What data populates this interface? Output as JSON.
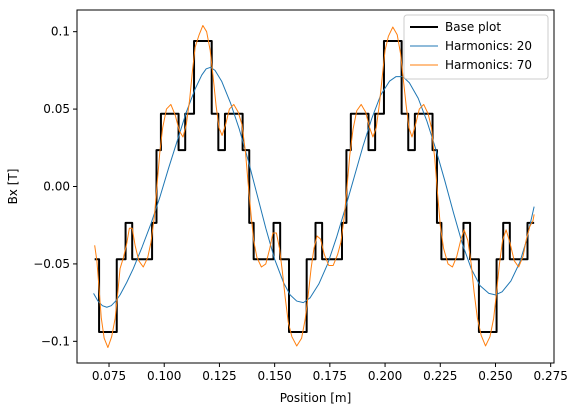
{
  "chart_data": {
    "type": "line",
    "title": "",
    "xlabel": "Position [m]",
    "ylabel": "Bx [T]",
    "xlim": [
      0.0605,
      0.2765
    ],
    "ylim": [
      -0.114,
      0.114
    ],
    "x_ticks": [
      0.075,
      0.1,
      0.125,
      0.15,
      0.175,
      0.2,
      0.225,
      0.25,
      0.275
    ],
    "x_tick_labels": [
      "0.075",
      "0.100",
      "0.125",
      "0.150",
      "0.175",
      "0.200",
      "0.225",
      "0.250",
      "0.275"
    ],
    "y_ticks": [
      -0.1,
      -0.05,
      0.0,
      0.05,
      0.1
    ],
    "y_tick_labels": [
      "−0.1",
      "−0.05",
      "0.00",
      "0.05",
      "0.1"
    ],
    "grid": false,
    "legend_position": "top-right",
    "series": [
      {
        "name": "Base plot",
        "color": "#000000",
        "style": "step",
        "points": [
          [
            0.0685,
            -0.047
          ],
          [
            0.0705,
            -0.047
          ],
          [
            0.0705,
            -0.094
          ],
          [
            0.0785,
            -0.094
          ],
          [
            0.0785,
            -0.047
          ],
          [
            0.0825,
            -0.047
          ],
          [
            0.0825,
            -0.0235
          ],
          [
            0.0855,
            -0.0235
          ],
          [
            0.0855,
            -0.047
          ],
          [
            0.0945,
            -0.047
          ],
          [
            0.0945,
            -0.0235
          ],
          [
            0.0965,
            -0.0235
          ],
          [
            0.0965,
            0.0235
          ],
          [
            0.0985,
            0.0235
          ],
          [
            0.0985,
            0.047
          ],
          [
            0.1065,
            0.047
          ],
          [
            0.1065,
            0.0235
          ],
          [
            0.1095,
            0.0235
          ],
          [
            0.1095,
            0.047
          ],
          [
            0.1135,
            0.047
          ],
          [
            0.1135,
            0.094
          ],
          [
            0.1215,
            0.094
          ],
          [
            0.1215,
            0.047
          ],
          [
            0.1245,
            0.047
          ],
          [
            0.1245,
            0.0235
          ],
          [
            0.1275,
            0.0235
          ],
          [
            0.1275,
            0.047
          ],
          [
            0.1355,
            0.047
          ],
          [
            0.1355,
            0.0235
          ],
          [
            0.1385,
            0.0235
          ],
          [
            0.1385,
            -0.0235
          ],
          [
            0.1405,
            -0.0235
          ],
          [
            0.1405,
            -0.047
          ],
          [
            0.1495,
            -0.047
          ],
          [
            0.1495,
            -0.0235
          ],
          [
            0.1525,
            -0.0235
          ],
          [
            0.1525,
            -0.047
          ],
          [
            0.1565,
            -0.047
          ],
          [
            0.1565,
            -0.094
          ],
          [
            0.1645,
            -0.094
          ],
          [
            0.1645,
            -0.047
          ],
          [
            0.1685,
            -0.047
          ],
          [
            0.1685,
            -0.0235
          ],
          [
            0.1715,
            -0.0235
          ],
          [
            0.1715,
            -0.047
          ],
          [
            0.1805,
            -0.047
          ],
          [
            0.1805,
            -0.0235
          ],
          [
            0.1825,
            -0.0235
          ],
          [
            0.1825,
            0.0235
          ],
          [
            0.1845,
            0.0235
          ],
          [
            0.1845,
            0.047
          ],
          [
            0.1925,
            0.047
          ],
          [
            0.1925,
            0.0235
          ],
          [
            0.1955,
            0.0235
          ],
          [
            0.1955,
            0.047
          ],
          [
            0.1995,
            0.047
          ],
          [
            0.1995,
            0.094
          ],
          [
            0.2075,
            0.094
          ],
          [
            0.2075,
            0.047
          ],
          [
            0.2105,
            0.047
          ],
          [
            0.2105,
            0.0235
          ],
          [
            0.2135,
            0.0235
          ],
          [
            0.2135,
            0.047
          ],
          [
            0.2215,
            0.047
          ],
          [
            0.2215,
            0.0235
          ],
          [
            0.2235,
            0.0235
          ],
          [
            0.2235,
            -0.0235
          ],
          [
            0.2255,
            -0.0235
          ],
          [
            0.2255,
            -0.047
          ],
          [
            0.2355,
            -0.047
          ],
          [
            0.2355,
            -0.0235
          ],
          [
            0.2385,
            -0.0235
          ],
          [
            0.2385,
            -0.047
          ],
          [
            0.2425,
            -0.047
          ],
          [
            0.2425,
            -0.094
          ],
          [
            0.2505,
            -0.094
          ],
          [
            0.2505,
            -0.047
          ],
          [
            0.2535,
            -0.047
          ],
          [
            0.2535,
            -0.0235
          ],
          [
            0.2565,
            -0.0235
          ],
          [
            0.2565,
            -0.047
          ],
          [
            0.2645,
            -0.047
          ],
          [
            0.2645,
            -0.0235
          ],
          [
            0.2675,
            -0.0235
          ]
        ]
      },
      {
        "name": "Harmonics: 20",
        "color": "#1f77b4",
        "style": "line",
        "points": [
          [
            0.068,
            -0.069
          ],
          [
            0.07,
            -0.074
          ],
          [
            0.072,
            -0.077
          ],
          [
            0.074,
            -0.078
          ],
          [
            0.076,
            -0.077
          ],
          [
            0.078,
            -0.074
          ],
          [
            0.08,
            -0.07
          ],
          [
            0.083,
            -0.062
          ],
          [
            0.086,
            -0.053
          ],
          [
            0.09,
            -0.039
          ],
          [
            0.094,
            -0.024
          ],
          [
            0.098,
            -0.007
          ],
          [
            0.102,
            0.012
          ],
          [
            0.106,
            0.03
          ],
          [
            0.11,
            0.048
          ],
          [
            0.114,
            0.063
          ],
          [
            0.117,
            0.072
          ],
          [
            0.119,
            0.076
          ],
          [
            0.121,
            0.077
          ],
          [
            0.123,
            0.075
          ],
          [
            0.126,
            0.068
          ],
          [
            0.13,
            0.054
          ],
          [
            0.134,
            0.037
          ],
          [
            0.138,
            0.017
          ],
          [
            0.142,
            -0.005
          ],
          [
            0.146,
            -0.027
          ],
          [
            0.15,
            -0.047
          ],
          [
            0.154,
            -0.062
          ],
          [
            0.157,
            -0.07
          ],
          [
            0.16,
            -0.074
          ],
          [
            0.163,
            -0.075
          ],
          [
            0.166,
            -0.072
          ],
          [
            0.17,
            -0.063
          ],
          [
            0.174,
            -0.05
          ],
          [
            0.178,
            -0.033
          ],
          [
            0.182,
            -0.014
          ],
          [
            0.186,
            0.006
          ],
          [
            0.19,
            0.026
          ],
          [
            0.194,
            0.044
          ],
          [
            0.198,
            0.059
          ],
          [
            0.202,
            0.068
          ],
          [
            0.205,
            0.071
          ],
          [
            0.208,
            0.071
          ],
          [
            0.211,
            0.067
          ],
          [
            0.215,
            0.057
          ],
          [
            0.219,
            0.042
          ],
          [
            0.223,
            0.024
          ],
          [
            0.227,
            0.004
          ],
          [
            0.231,
            -0.017
          ],
          [
            0.235,
            -0.037
          ],
          [
            0.239,
            -0.053
          ],
          [
            0.243,
            -0.064
          ],
          [
            0.247,
            -0.069
          ],
          [
            0.25,
            -0.07
          ],
          [
            0.253,
            -0.068
          ],
          [
            0.257,
            -0.061
          ],
          [
            0.261,
            -0.049
          ],
          [
            0.264,
            -0.035
          ],
          [
            0.2675,
            -0.013
          ]
        ]
      },
      {
        "name": "Harmonics: 70",
        "color": "#ff7f0e",
        "style": "line",
        "points": [
          [
            0.0685,
            -0.038
          ],
          [
            0.0695,
            -0.048
          ],
          [
            0.0705,
            -0.066
          ],
          [
            0.0715,
            -0.085
          ],
          [
            0.0728,
            -0.098
          ],
          [
            0.0745,
            -0.104
          ],
          [
            0.0762,
            -0.097
          ],
          [
            0.0778,
            -0.085
          ],
          [
            0.079,
            -0.068
          ],
          [
            0.08,
            -0.053
          ],
          [
            0.0815,
            -0.046
          ],
          [
            0.083,
            -0.037
          ],
          [
            0.0842,
            -0.027
          ],
          [
            0.0855,
            -0.027
          ],
          [
            0.0868,
            -0.038
          ],
          [
            0.0885,
            -0.048
          ],
          [
            0.0905,
            -0.052
          ],
          [
            0.0925,
            -0.046
          ],
          [
            0.094,
            -0.036
          ],
          [
            0.0955,
            -0.02
          ],
          [
            0.0968,
            0.002
          ],
          [
            0.098,
            0.022
          ],
          [
            0.0993,
            0.038
          ],
          [
            0.101,
            0.05
          ],
          [
            0.103,
            0.053
          ],
          [
            0.105,
            0.046
          ],
          [
            0.1068,
            0.036
          ],
          [
            0.1085,
            0.032
          ],
          [
            0.11,
            0.04
          ],
          [
            0.1115,
            0.056
          ],
          [
            0.1128,
            0.075
          ],
          [
            0.114,
            0.09
          ],
          [
            0.1158,
            0.098
          ],
          [
            0.1175,
            0.104
          ],
          [
            0.1192,
            0.1
          ],
          [
            0.1208,
            0.088
          ],
          [
            0.1222,
            0.07
          ],
          [
            0.1235,
            0.052
          ],
          [
            0.1248,
            0.038
          ],
          [
            0.1262,
            0.033
          ],
          [
            0.1278,
            0.04
          ],
          [
            0.1295,
            0.05
          ],
          [
            0.1315,
            0.053
          ],
          [
            0.1335,
            0.048
          ],
          [
            0.1352,
            0.04
          ],
          [
            0.1368,
            0.022
          ],
          [
            0.138,
            0.002
          ],
          [
            0.1393,
            -0.018
          ],
          [
            0.1405,
            -0.035
          ],
          [
            0.142,
            -0.046
          ],
          [
            0.144,
            -0.052
          ],
          [
            0.146,
            -0.05
          ],
          [
            0.1478,
            -0.04
          ],
          [
            0.1492,
            -0.03
          ],
          [
            0.1508,
            -0.03
          ],
          [
            0.1522,
            -0.04
          ],
          [
            0.1535,
            -0.055
          ],
          [
            0.1548,
            -0.072
          ],
          [
            0.1562,
            -0.088
          ],
          [
            0.1578,
            -0.097
          ],
          [
            0.16,
            -0.103
          ],
          [
            0.1622,
            -0.098
          ],
          [
            0.1638,
            -0.086
          ],
          [
            0.1652,
            -0.07
          ],
          [
            0.1665,
            -0.053
          ],
          [
            0.1678,
            -0.04
          ],
          [
            0.1692,
            -0.032
          ],
          [
            0.1708,
            -0.034
          ],
          [
            0.1725,
            -0.044
          ],
          [
            0.1745,
            -0.051
          ],
          [
            0.1765,
            -0.051
          ],
          [
            0.1785,
            -0.044
          ],
          [
            0.18,
            -0.036
          ],
          [
            0.1815,
            -0.02
          ],
          [
            0.1828,
            0.0
          ],
          [
            0.184,
            0.02
          ],
          [
            0.1855,
            0.037
          ],
          [
            0.1872,
            0.049
          ],
          [
            0.1892,
            0.053
          ],
          [
            0.1912,
            0.048
          ],
          [
            0.193,
            0.038
          ],
          [
            0.1945,
            0.032
          ],
          [
            0.196,
            0.038
          ],
          [
            0.1975,
            0.054
          ],
          [
            0.1988,
            0.072
          ],
          [
            0.2,
            0.088
          ],
          [
            0.2015,
            0.097
          ],
          [
            0.2035,
            0.103
          ],
          [
            0.2055,
            0.098
          ],
          [
            0.207,
            0.086
          ],
          [
            0.2082,
            0.07
          ],
          [
            0.2095,
            0.053
          ],
          [
            0.2108,
            0.038
          ],
          [
            0.2122,
            0.032
          ],
          [
            0.2138,
            0.04
          ],
          [
            0.2155,
            0.05
          ],
          [
            0.2175,
            0.053
          ],
          [
            0.2195,
            0.047
          ],
          [
            0.221,
            0.038
          ],
          [
            0.2225,
            0.018
          ],
          [
            0.2238,
            -0.005
          ],
          [
            0.225,
            -0.025
          ],
          [
            0.2265,
            -0.04
          ],
          [
            0.2285,
            -0.05
          ],
          [
            0.2305,
            -0.052
          ],
          [
            0.2325,
            -0.045
          ],
          [
            0.2342,
            -0.035
          ],
          [
            0.2358,
            -0.028
          ],
          [
            0.2375,
            -0.035
          ],
          [
            0.239,
            -0.05
          ],
          [
            0.2403,
            -0.068
          ],
          [
            0.2418,
            -0.085
          ],
          [
            0.2435,
            -0.096
          ],
          [
            0.2455,
            -0.103
          ],
          [
            0.2475,
            -0.097
          ],
          [
            0.2492,
            -0.085
          ],
          [
            0.2505,
            -0.068
          ],
          [
            0.2518,
            -0.05
          ],
          [
            0.2532,
            -0.035
          ],
          [
            0.2548,
            -0.028
          ],
          [
            0.2565,
            -0.036
          ],
          [
            0.2585,
            -0.048
          ],
          [
            0.2605,
            -0.052
          ],
          [
            0.2625,
            -0.045
          ],
          [
            0.264,
            -0.034
          ],
          [
            0.2655,
            -0.026
          ],
          [
            0.267,
            -0.022
          ],
          [
            0.2675,
            -0.018
          ]
        ]
      }
    ]
  }
}
